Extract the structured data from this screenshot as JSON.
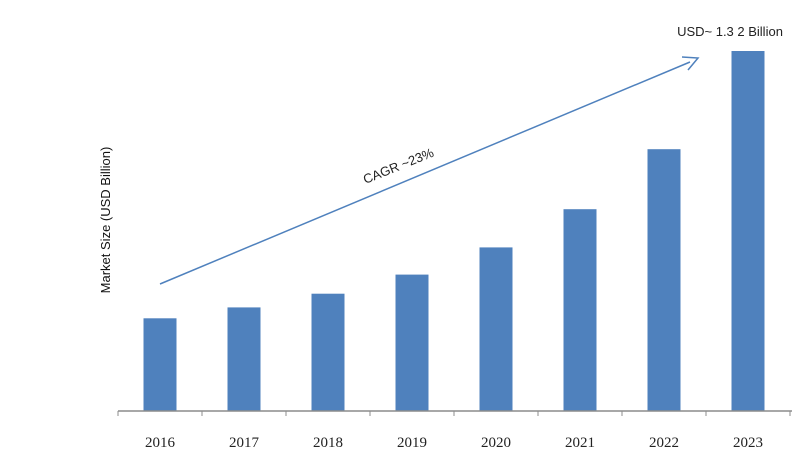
{
  "chart_data": {
    "type": "bar",
    "categories": [
      "2016",
      "2017",
      "2018",
      "2019",
      "2020",
      "2021",
      "2022",
      "2023"
    ],
    "values": [
      0.34,
      0.38,
      0.43,
      0.5,
      0.6,
      0.74,
      0.96,
      1.32
    ],
    "ylabel": "Market Size  (USD Billion)",
    "ylim": [
      0,
      1.32
    ],
    "grid": false,
    "colors": {
      "bar": "#4f81bd",
      "arrow": "#4f81bd",
      "axis": "#8c8c8c"
    },
    "annotations": {
      "cagr": "CAGR ~23%",
      "top_value": "USD~ 1.3 2 Billion"
    }
  }
}
